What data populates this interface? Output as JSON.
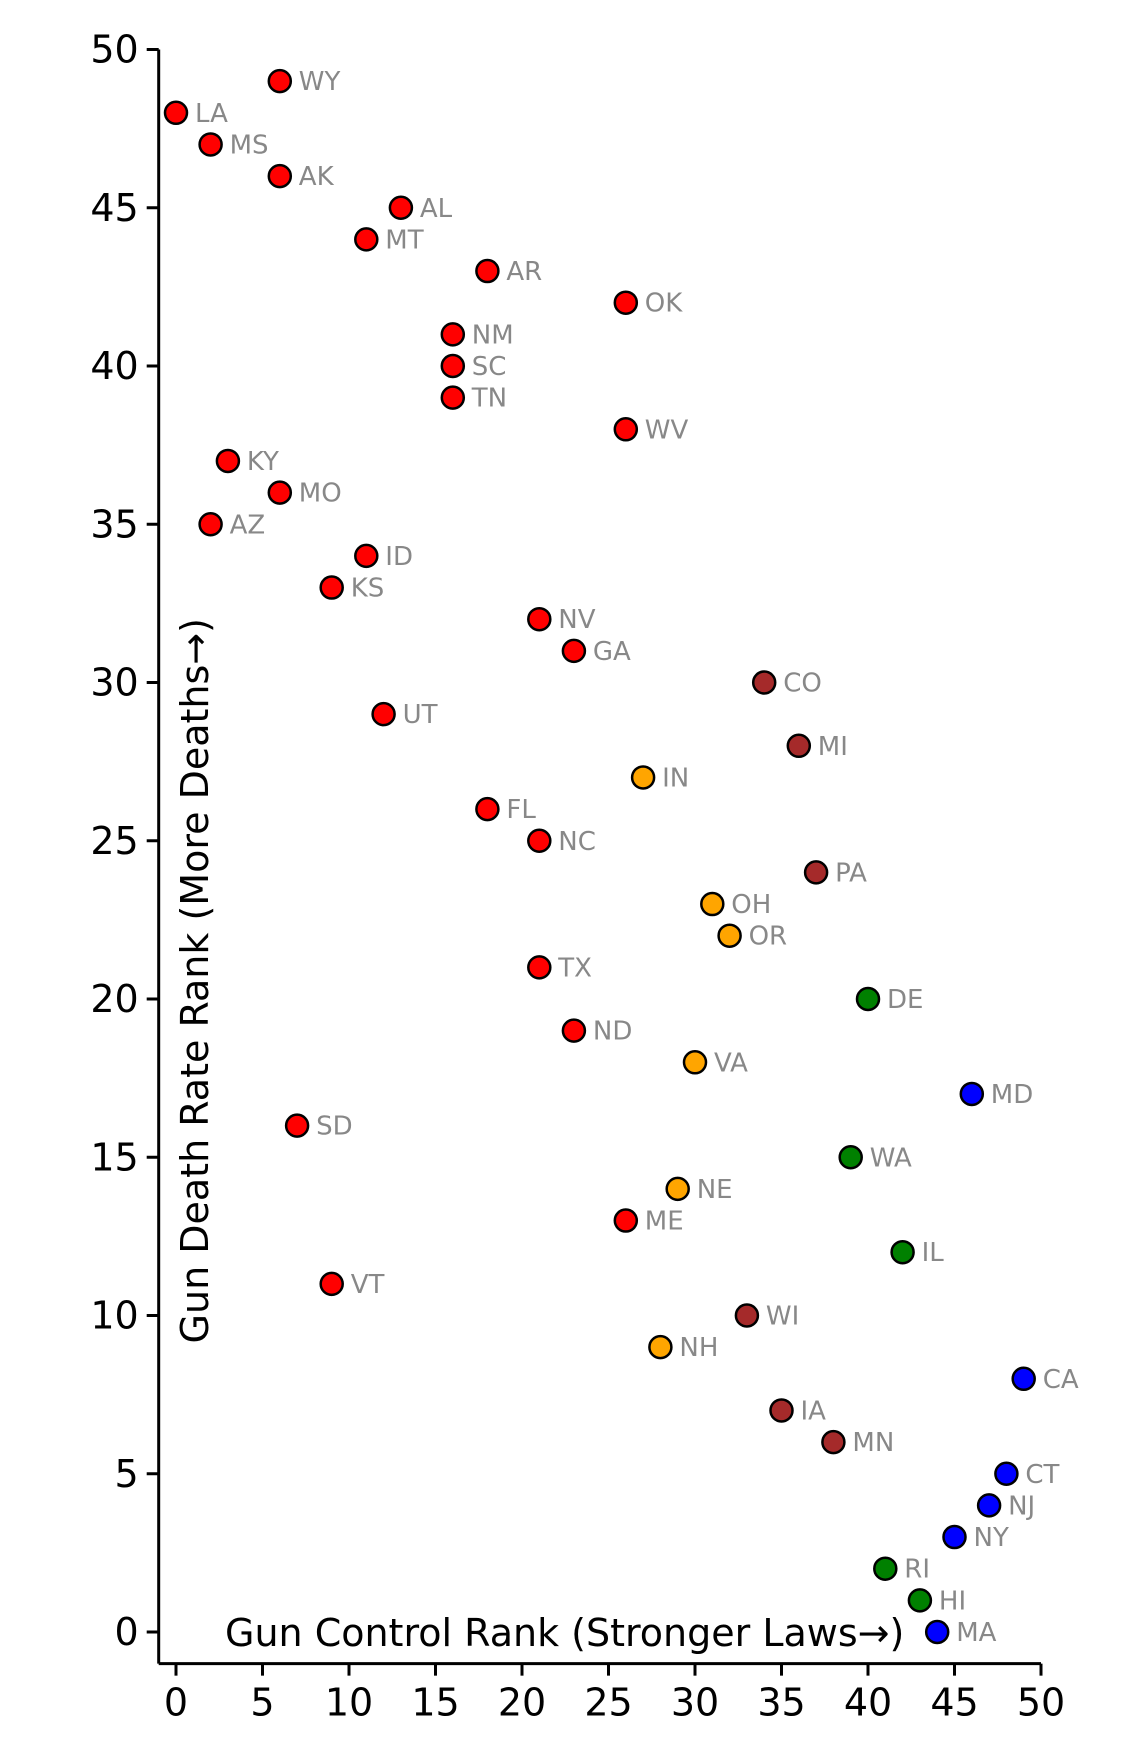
{
  "chart_data": {
    "type": "scatter",
    "xlabel": "Gun Control Rank (Stronger Laws→)",
    "ylabel": "Gun Death Rate Rank (More Deaths→)",
    "xlim": [
      -1,
      50
    ],
    "ylim": [
      -1,
      50
    ],
    "xticks": [
      "0",
      "5",
      "10",
      "15",
      "20",
      "25",
      "30",
      "35",
      "40",
      "45",
      "50"
    ],
    "yticks": [
      "0",
      "5",
      "10",
      "15",
      "20",
      "25",
      "30",
      "35",
      "40",
      "45",
      "50"
    ],
    "colors": {
      "red": "#ff0000",
      "darkred": "#a52a2a",
      "orange": "#ffa500",
      "green": "#008000",
      "blue": "#0000ff"
    },
    "points": [
      {
        "label": "WY",
        "x": 6,
        "y": 49,
        "color": "red"
      },
      {
        "label": "LA",
        "x": 0,
        "y": 48,
        "color": "red"
      },
      {
        "label": "MS",
        "x": 2,
        "y": 47,
        "color": "red"
      },
      {
        "label": "AK",
        "x": 6,
        "y": 46,
        "color": "red"
      },
      {
        "label": "AL",
        "x": 13,
        "y": 45,
        "color": "red"
      },
      {
        "label": "MT",
        "x": 11,
        "y": 44,
        "color": "red"
      },
      {
        "label": "AR",
        "x": 18,
        "y": 43,
        "color": "red"
      },
      {
        "label": "OK",
        "x": 26,
        "y": 42,
        "color": "red"
      },
      {
        "label": "NM",
        "x": 16,
        "y": 41,
        "color": "red"
      },
      {
        "label": "SC",
        "x": 16,
        "y": 40,
        "color": "red"
      },
      {
        "label": "TN",
        "x": 16,
        "y": 39,
        "color": "red"
      },
      {
        "label": "WV",
        "x": 26,
        "y": 38,
        "color": "red"
      },
      {
        "label": "KY",
        "x": 3,
        "y": 37,
        "color": "red"
      },
      {
        "label": "MO",
        "x": 6,
        "y": 36,
        "color": "red"
      },
      {
        "label": "AZ",
        "x": 2,
        "y": 35,
        "color": "red"
      },
      {
        "label": "ID",
        "x": 11,
        "y": 34,
        "color": "red"
      },
      {
        "label": "KS",
        "x": 9,
        "y": 33,
        "color": "red"
      },
      {
        "label": "NV",
        "x": 21,
        "y": 32,
        "color": "red"
      },
      {
        "label": "GA",
        "x": 23,
        "y": 31,
        "color": "red"
      },
      {
        "label": "CO",
        "x": 34,
        "y": 30,
        "color": "darkred"
      },
      {
        "label": "UT",
        "x": 12,
        "y": 29,
        "color": "red"
      },
      {
        "label": "MI",
        "x": 36,
        "y": 28,
        "color": "darkred"
      },
      {
        "label": "IN",
        "x": 27,
        "y": 27,
        "color": "orange"
      },
      {
        "label": "FL",
        "x": 18,
        "y": 26,
        "color": "red"
      },
      {
        "label": "NC",
        "x": 21,
        "y": 25,
        "color": "red"
      },
      {
        "label": "PA",
        "x": 37,
        "y": 24,
        "color": "darkred"
      },
      {
        "label": "OH",
        "x": 31,
        "y": 23,
        "color": "orange"
      },
      {
        "label": "OR",
        "x": 32,
        "y": 22,
        "color": "orange"
      },
      {
        "label": "TX",
        "x": 21,
        "y": 21,
        "color": "red"
      },
      {
        "label": "DE",
        "x": 40,
        "y": 20,
        "color": "green"
      },
      {
        "label": "ND",
        "x": 23,
        "y": 19,
        "color": "red"
      },
      {
        "label": "VA",
        "x": 30,
        "y": 18,
        "color": "orange"
      },
      {
        "label": "MD",
        "x": 46,
        "y": 17,
        "color": "blue"
      },
      {
        "label": "SD",
        "x": 7,
        "y": 16,
        "color": "red"
      },
      {
        "label": "WA",
        "x": 39,
        "y": 15,
        "color": "green"
      },
      {
        "label": "NE",
        "x": 29,
        "y": 14,
        "color": "orange"
      },
      {
        "label": "ME",
        "x": 26,
        "y": 13,
        "color": "red"
      },
      {
        "label": "IL",
        "x": 42,
        "y": 12,
        "color": "green"
      },
      {
        "label": "VT",
        "x": 9,
        "y": 11,
        "color": "red"
      },
      {
        "label": "WI",
        "x": 33,
        "y": 10,
        "color": "darkred"
      },
      {
        "label": "NH",
        "x": 28,
        "y": 9,
        "color": "orange"
      },
      {
        "label": "CA",
        "x": 49,
        "y": 8,
        "color": "blue"
      },
      {
        "label": "IA",
        "x": 35,
        "y": 7,
        "color": "darkred"
      },
      {
        "label": "MN",
        "x": 38,
        "y": 6,
        "color": "darkred"
      },
      {
        "label": "CT",
        "x": 48,
        "y": 5,
        "color": "blue"
      },
      {
        "label": "NJ",
        "x": 47,
        "y": 4,
        "color": "blue"
      },
      {
        "label": "NY",
        "x": 45,
        "y": 3,
        "color": "blue"
      },
      {
        "label": "RI",
        "x": 41,
        "y": 2,
        "color": "green"
      },
      {
        "label": "HI",
        "x": 43,
        "y": 1,
        "color": "green"
      },
      {
        "label": "MA",
        "x": 44,
        "y": 0,
        "color": "blue"
      }
    ]
  }
}
